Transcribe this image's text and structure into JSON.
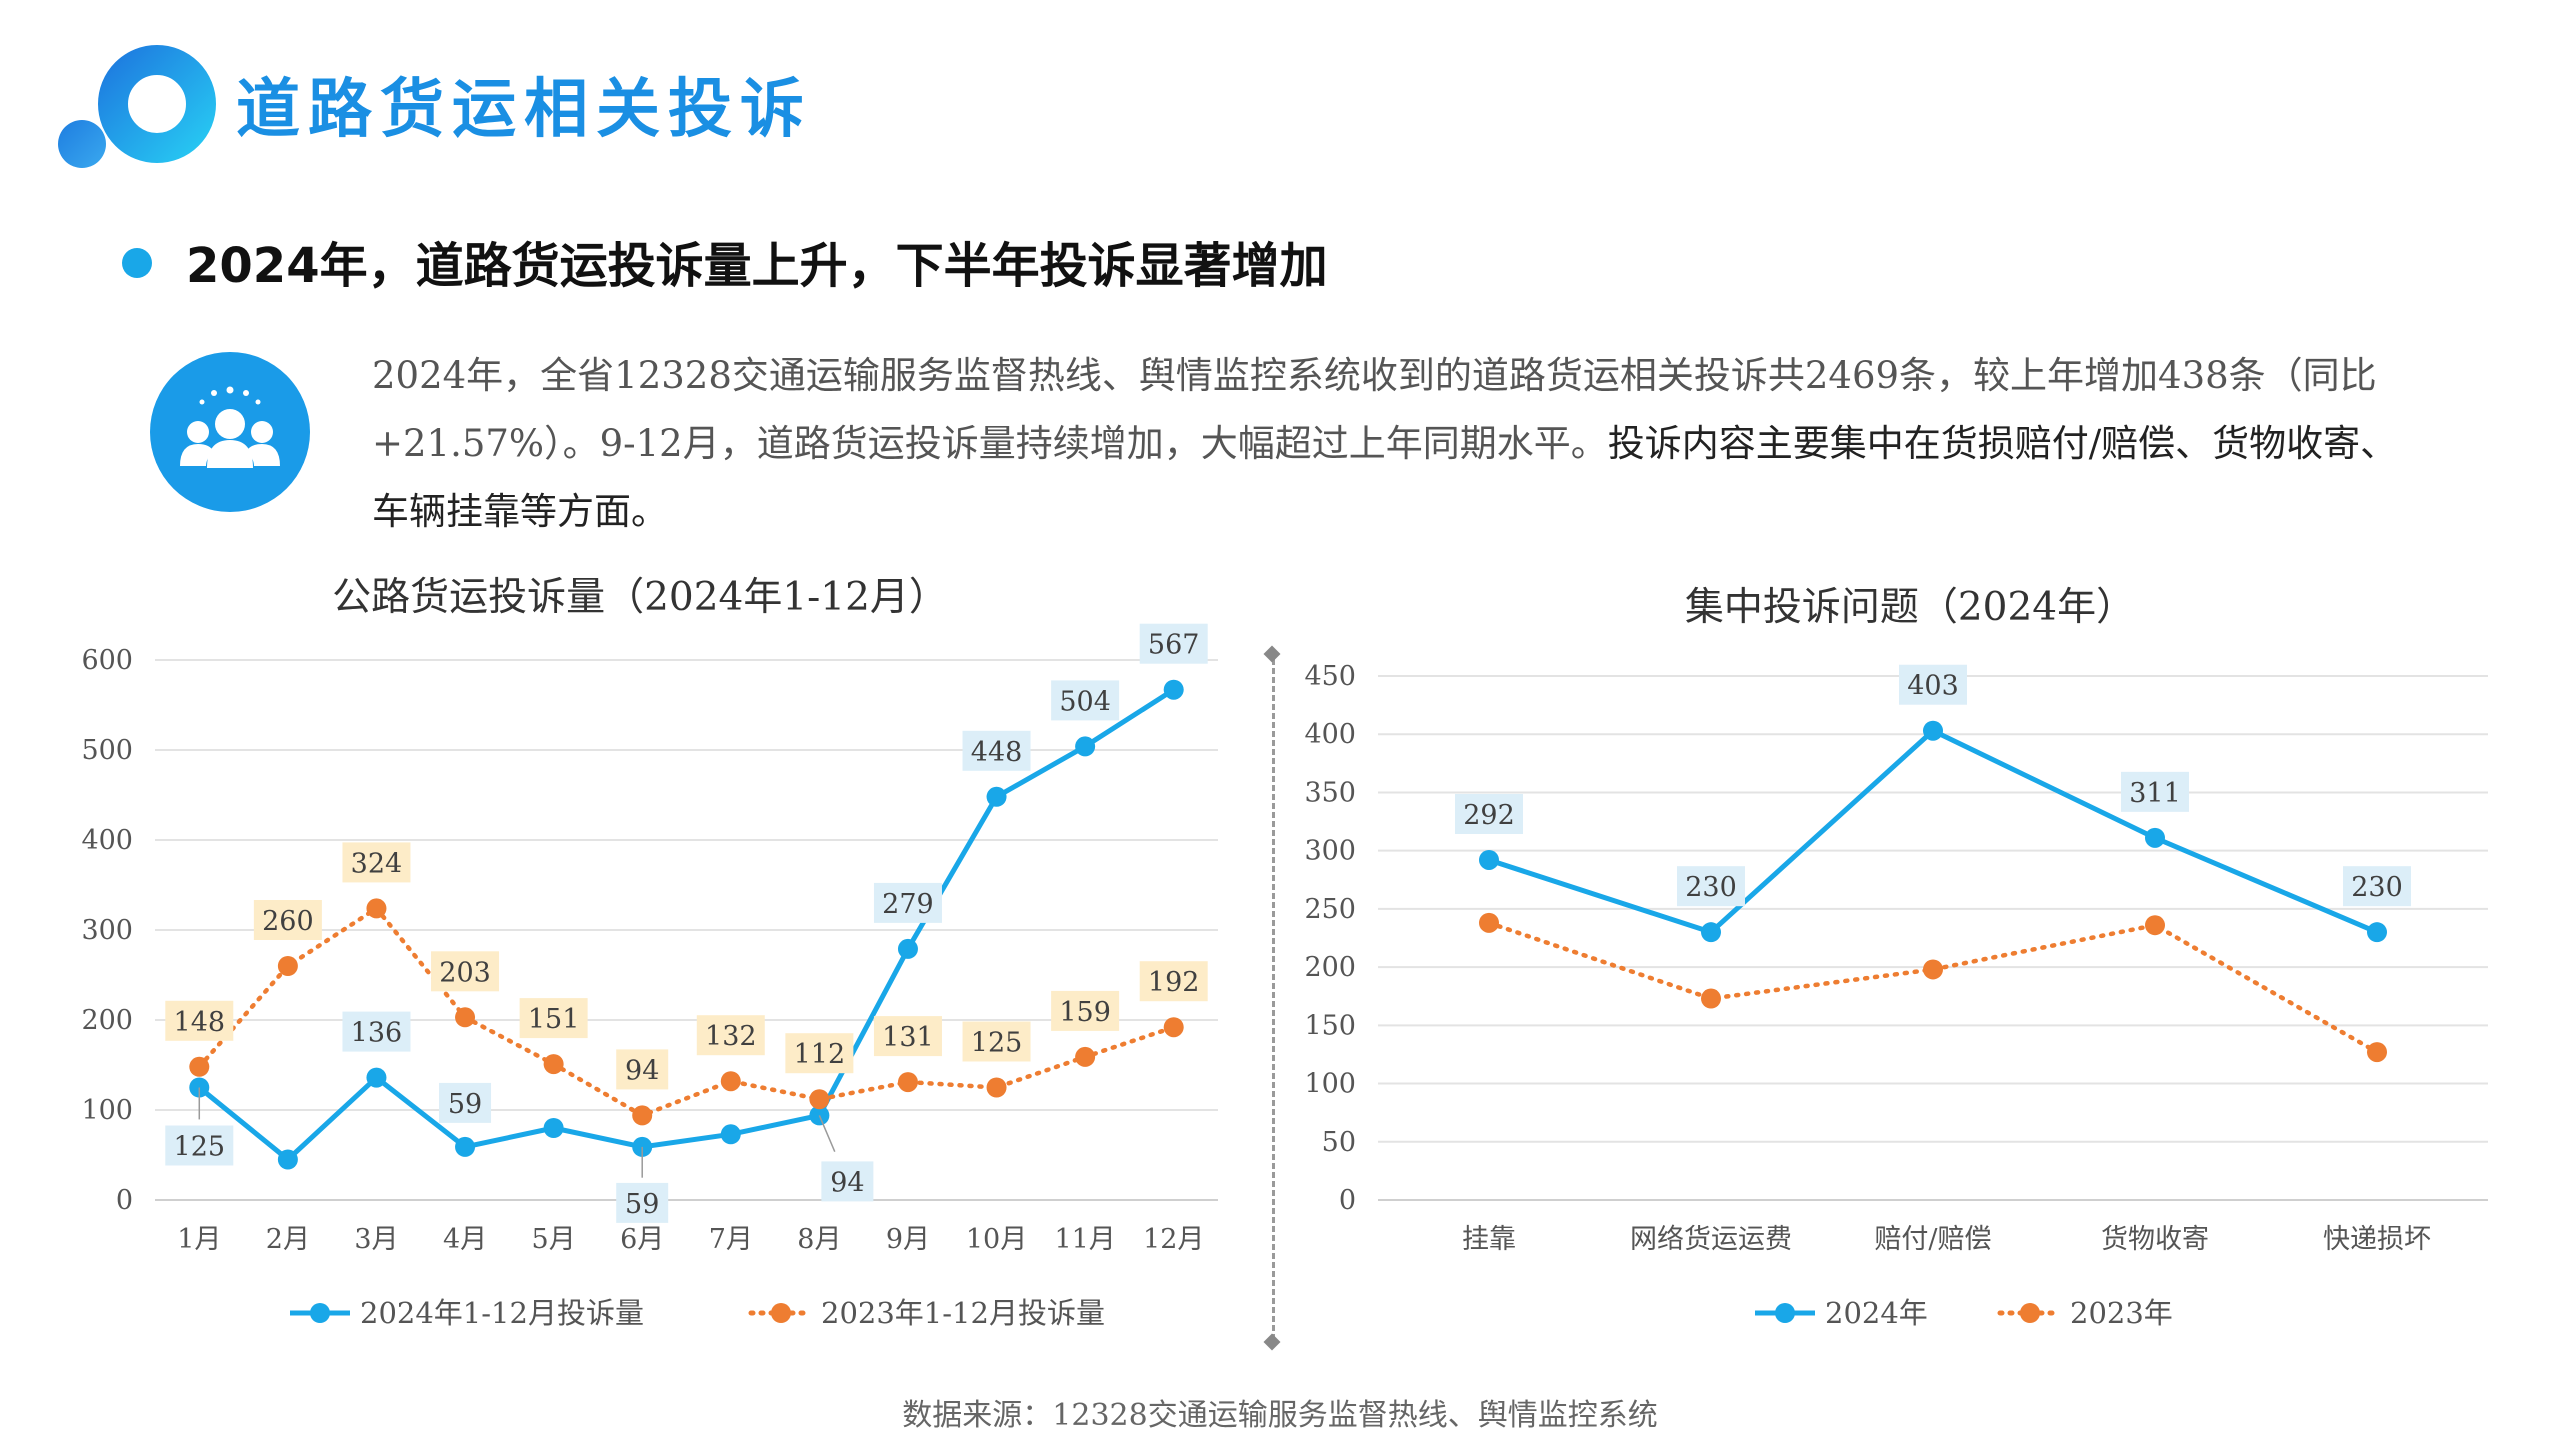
{
  "page": {
    "title": "道路货运相关投诉",
    "headline": "2024年，道路货运投诉量上升，下半年投诉显著增加",
    "summary_plain": "2024年，全省12328交通运输服务监督热线、舆情监控系统收到的道路货运相关投诉共2469条，较上年增加438条（同比+21.57%）。9-12月，道路货运投诉量持续增加，大幅超过上年同期水平。",
    "summary_emph": "投诉内容主要集中在货损赔付/赔偿、货物收寄、车辆挂靠等方面。",
    "source": "数据来源：12328交通运输服务监督热线、舆情监控系统"
  },
  "colors": {
    "accent": "#1a8fe3",
    "series_2024": "#19a7e8",
    "series_2023": "#ee7d31",
    "label_bg_2024": "#dceef8",
    "label_bg_2023": "#fdecc8"
  },
  "chart_data": [
    {
      "type": "line",
      "title": "公路货运投诉量（2024年1-12月）",
      "categories": [
        "1月",
        "2月",
        "3月",
        "4月",
        "5月",
        "6月",
        "7月",
        "8月",
        "9月",
        "10月",
        "11月",
        "12月"
      ],
      "ylim": [
        0,
        600
      ],
      "yticks": [
        0,
        100,
        200,
        300,
        400,
        500,
        600
      ],
      "grid": true,
      "legend": "bottom",
      "series": [
        {
          "name": "2024年1-12月投诉量",
          "style": "solid",
          "values": [
            125,
            45,
            136,
            59,
            80,
            59,
            73,
            94,
            279,
            448,
            504,
            567
          ],
          "labels": [
            "125",
            null,
            "136",
            "59",
            null,
            "59",
            null,
            "94",
            "279",
            "448",
            "504",
            "567"
          ]
        },
        {
          "name": "2023年1-12月投诉量",
          "style": "dotted",
          "values": [
            148,
            260,
            324,
            203,
            151,
            94,
            132,
            112,
            131,
            125,
            159,
            192
          ],
          "labels": [
            "148",
            "260",
            "324",
            "203",
            "151",
            "94",
            "132",
            "112",
            "131",
            "125",
            "159",
            "192"
          ]
        }
      ]
    },
    {
      "type": "line",
      "title": "集中投诉问题（2024年）",
      "categories": [
        "挂靠",
        "网络货运运费",
        "赔付/赔偿",
        "货物收寄",
        "快递损坏"
      ],
      "ylim": [
        0,
        450
      ],
      "yticks": [
        0,
        50,
        100,
        150,
        200,
        250,
        300,
        350,
        400,
        450
      ],
      "grid": true,
      "legend": "bottom",
      "series": [
        {
          "name": "2024年",
          "style": "solid",
          "values": [
            292,
            230,
            403,
            311,
            230
          ],
          "labels": [
            "292",
            "230",
            "403",
            "311",
            "230"
          ]
        },
        {
          "name": "2023年",
          "style": "dotted",
          "values": [
            238,
            173,
            198,
            236,
            127
          ],
          "labels": [
            null,
            null,
            null,
            null,
            null
          ]
        }
      ]
    }
  ]
}
